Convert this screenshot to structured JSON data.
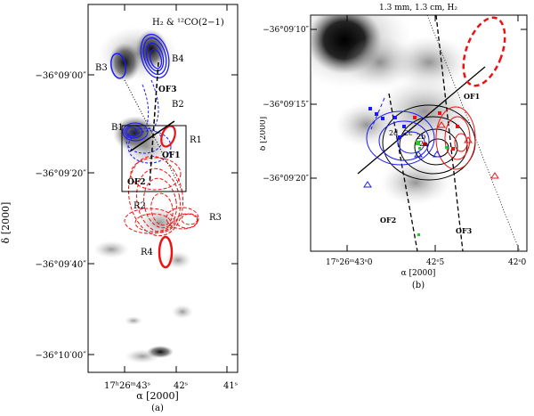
{
  "panel_a": {
    "caption": "(a)",
    "title": "H₂ & ¹²CO(2−1)",
    "ylabel": "δ [2000]",
    "xlabel": "α [2000]",
    "yticks": [
      "−36°09′00″",
      "−36°09′20″",
      "−36°09′40″",
      "−36°10′00″"
    ],
    "xticks": [
      "17ʰ26ᵐ43ˢ",
      "42ˢ",
      "41ˢ"
    ],
    "labels": {
      "B1": "B1",
      "B2": "B2",
      "B3": "B3",
      "B4": "B4",
      "R1": "R1",
      "R2": "R2",
      "R3": "R3",
      "R4": "R4",
      "OF1": "OF1",
      "OF2": "OF2",
      "OF3": "OF3"
    }
  },
  "panel_b": {
    "caption": "(b)",
    "title": "1.3 mm, 1.3 cm, H₂",
    "ylabel": "δ [2000]",
    "xlabel": "α [2000]",
    "yticks": [
      "−36°09′10″",
      "−36°09′15″",
      "−36°09′20″"
    ],
    "xticks": [
      "17ʰ26ᵐ43ˢ0",
      "42ˢ5",
      "42ˢ0"
    ],
    "labels": {
      "OF1": "OF1",
      "OF2": "OF2",
      "OF3": "OF3",
      "s2a": "2a",
      "s2b": "2b",
      "s2c": "2c",
      "s2d": "2d"
    }
  },
  "colors": {
    "blue": "#1a1aff",
    "red": "#ee1111",
    "green": "#22cc22",
    "black": "#000000"
  }
}
